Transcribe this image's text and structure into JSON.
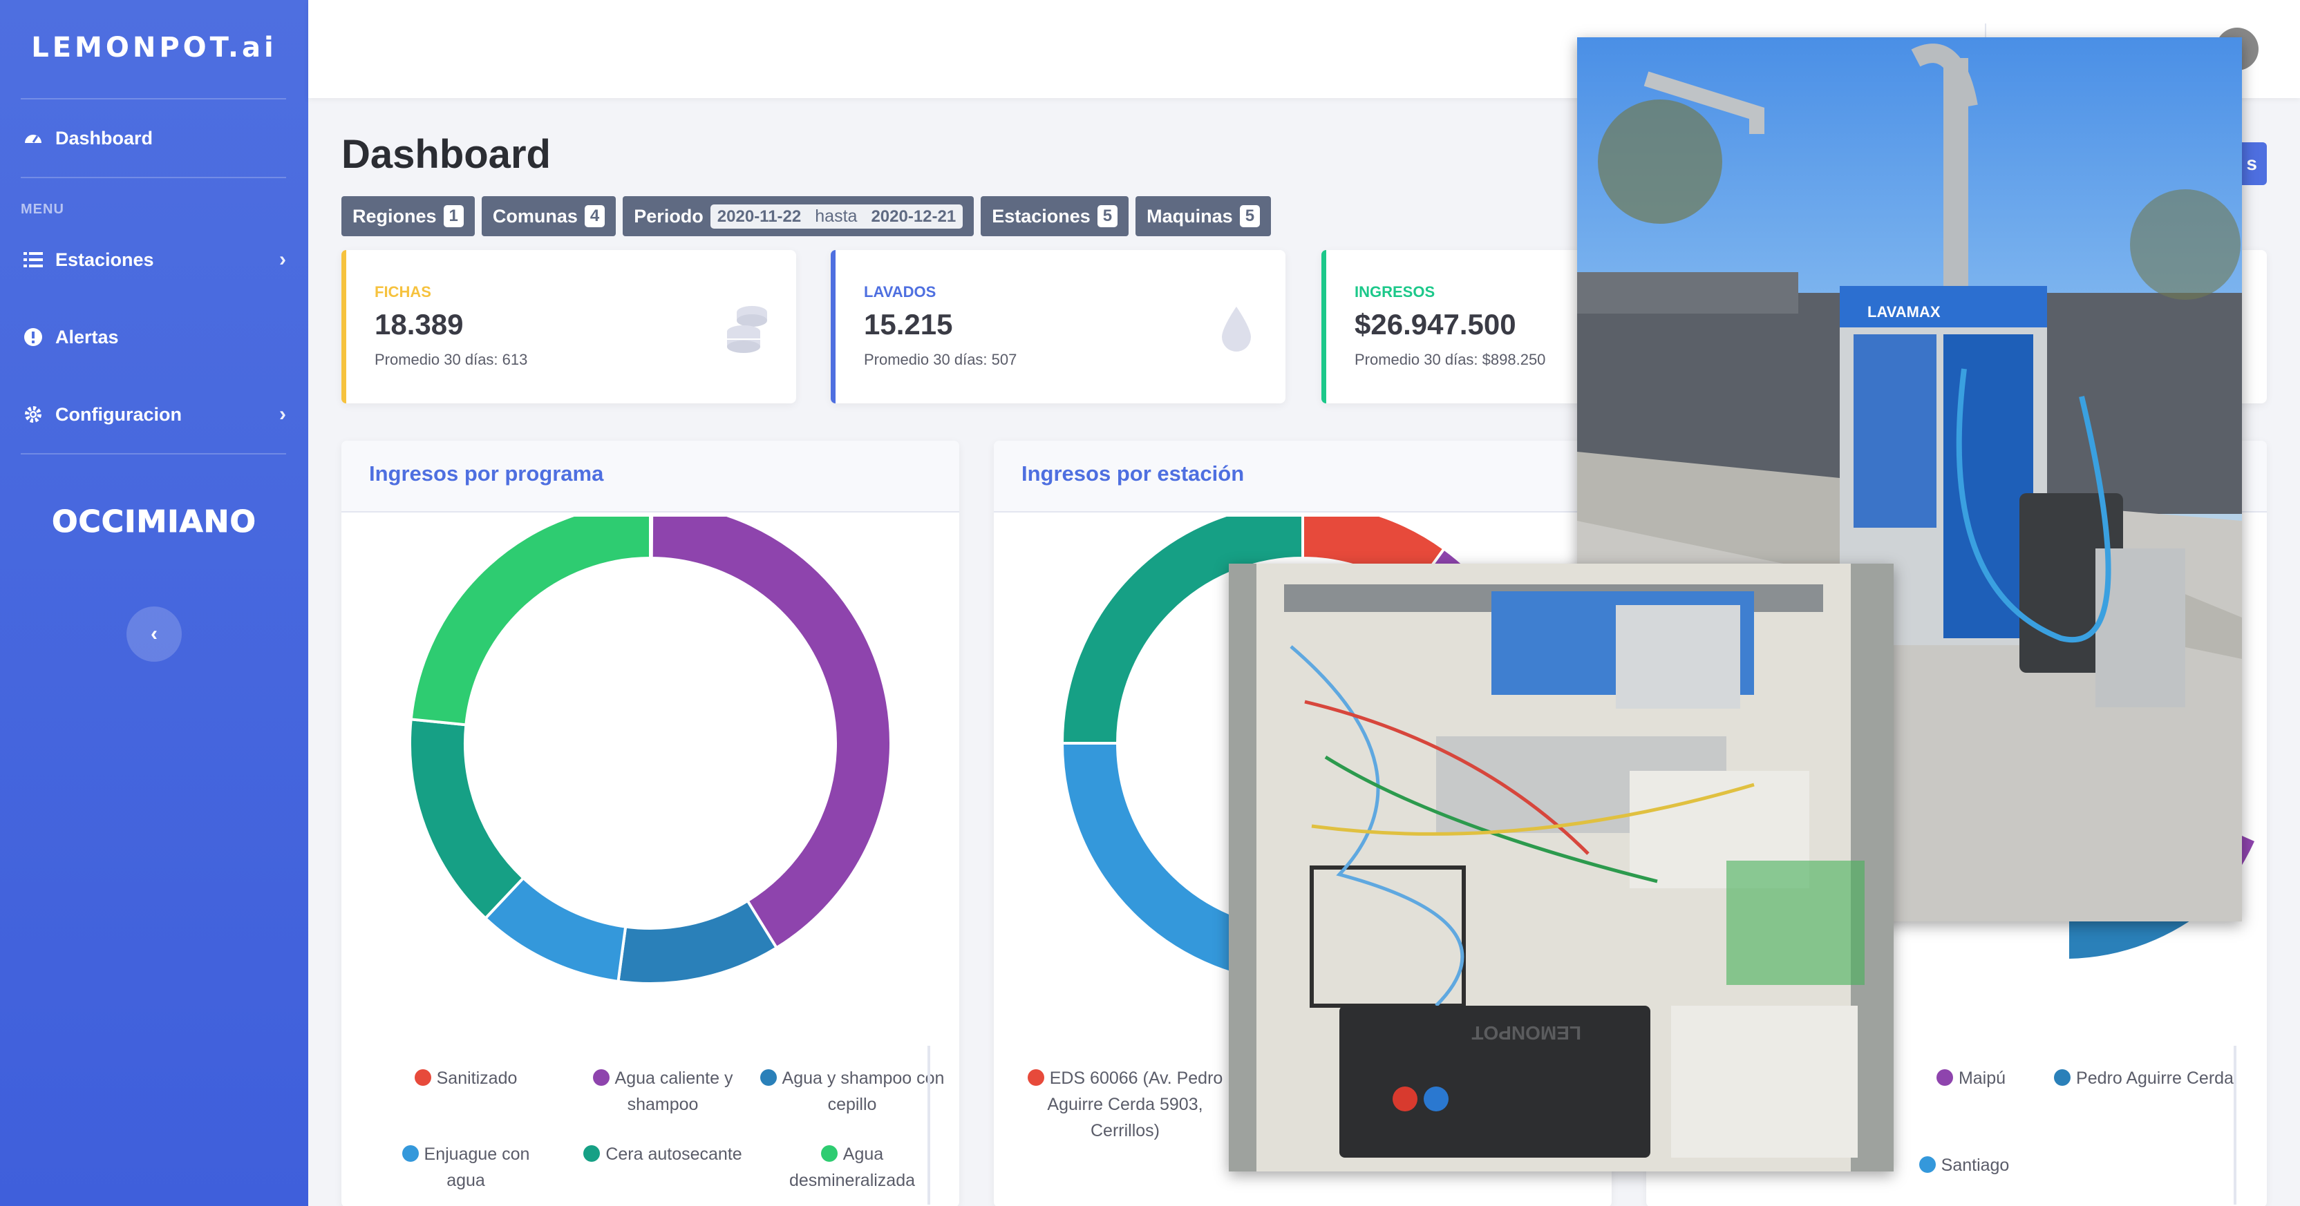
{
  "app": {
    "brand": "LEMONPOT.ai",
    "partner_logo": "OCCIMIANO"
  },
  "sidebar": {
    "dashboard_label": "Dashboard",
    "menu_heading": "MENU",
    "items": [
      {
        "label": "Estaciones",
        "icon": "list-icon",
        "has_children": true
      },
      {
        "label": "Alertas",
        "icon": "alert-circle-icon",
        "has_children": false
      },
      {
        "label": "Configuracion",
        "icon": "gear-icon",
        "has_children": true
      }
    ]
  },
  "header": {
    "title": "Dashboard",
    "report_button_suffix": "s"
  },
  "filters": {
    "regiones": {
      "label": "Regiones",
      "count": "1"
    },
    "comunas": {
      "label": "Comunas",
      "count": "4"
    },
    "periodo": {
      "label": "Periodo",
      "from": "2020-11-22",
      "hasta": "hasta",
      "to": "2020-12-21"
    },
    "estaciones": {
      "label": "Estaciones",
      "count": "5"
    },
    "maquinas": {
      "label": "Maquinas",
      "count": "5"
    }
  },
  "stats": [
    {
      "label": "FICHAS",
      "value": "18.389",
      "sub": "Promedio 30 días: 613",
      "color": "#f6c23e",
      "icon": "coins-icon"
    },
    {
      "label": "LAVADOS",
      "value": "15.215",
      "sub": "Promedio 30 días: 507",
      "color": "#4e6fe0",
      "icon": "water-drop-icon"
    },
    {
      "label": "INGRESOS",
      "value": "$26.947.500",
      "sub": "Promedio 30 días: $898.250",
      "color": "#1cc88a",
      "icon": "money-icon"
    }
  ],
  "charts": {
    "programa": {
      "title": "Ingresos por programa",
      "legend": [
        {
          "label": "Sanitizado",
          "color": "#e74a3b"
        },
        {
          "label": "Agua caliente y shampoo",
          "color": "#8e44ad"
        },
        {
          "label": "Agua y shampoo con cepillo",
          "color": "#2a80b9"
        },
        {
          "label": "Enjuague con agua",
          "color": "#3498db"
        },
        {
          "label": "Cera autosecante",
          "color": "#16a085"
        },
        {
          "label": "Agua desmineralizada",
          "color": "#2ecc71"
        }
      ]
    },
    "estacion": {
      "title": "Ingresos por estación",
      "legend": [
        {
          "label": "EDS 60066 (Av. Pedro Aguirre Cerda 5903, Cerrillos)",
          "color": "#e74a3b"
        }
      ]
    },
    "comuna": {
      "legend": [
        {
          "label": "Maipú",
          "color": "#8e44ad"
        },
        {
          "label": "Pedro Aguirre Cerda",
          "color": "#2a80b9"
        },
        {
          "label": "Santiago",
          "color": "#3498db"
        }
      ]
    }
  },
  "chart_data": [
    {
      "type": "pie",
      "title": "Ingresos por programa",
      "categories": [
        "Sanitizado",
        "Agua caliente y shampoo",
        "Agua y shampoo con cepillo",
        "Enjuague con agua",
        "Cera autosecante",
        "Agua desmineralizada"
      ],
      "values": [
        0.1,
        39.5,
        10.5,
        9.5,
        14,
        22.5
      ],
      "colors": [
        "#e74a3b",
        "#8e44ad",
        "#2a80b9",
        "#3498db",
        "#16a085",
        "#2ecc71"
      ]
    },
    {
      "type": "pie",
      "title": "Ingresos por estación",
      "categories": [
        "EDS 60066 (Av. Pedro Aguirre Cerda 5903, Cerrillos)",
        "",
        "",
        "",
        ""
      ],
      "values": [
        10,
        20,
        20,
        25,
        25
      ],
      "colors": [
        "#e74a3b",
        "#8e44ad",
        "#2a80b9",
        "#3498db",
        "#16a085"
      ]
    }
  ],
  "photos": {
    "station_sign": "LAVAMAX",
    "panel_label": "LEMONPOT"
  }
}
